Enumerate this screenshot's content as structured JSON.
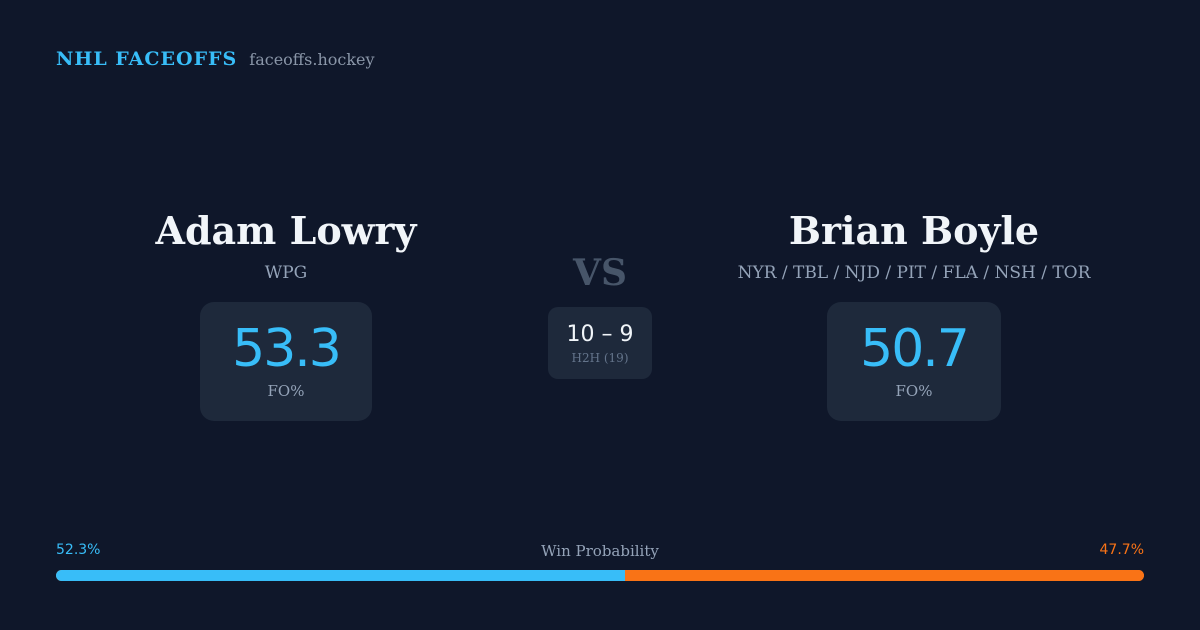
{
  "brand": {
    "title": "NHL FACEOFFS",
    "site": "faceoffs.hockey"
  },
  "player_left": {
    "name": "Adam Lowry",
    "team": "WPG",
    "fo_value": "53.3",
    "fo_label": "FO%"
  },
  "player_right": {
    "name": "Brian Boyle",
    "team": "NYR / TBL / NJD / PIT / FLA / NSH / TOR",
    "fo_value": "50.7",
    "fo_label": "FO%"
  },
  "versus": {
    "label": "VS",
    "h2h_score": "10 – 9",
    "h2h_label": "H2H (19)"
  },
  "win_probability": {
    "title": "Win Probability",
    "left_text": "52.3%",
    "right_text": "47.7%",
    "left_fraction": 0.523,
    "right_fraction": 0.477
  },
  "colors": {
    "background": "#0f172a",
    "card": "#1e293b",
    "accent_blue": "#38bdf8",
    "accent_orange": "#f97316"
  }
}
